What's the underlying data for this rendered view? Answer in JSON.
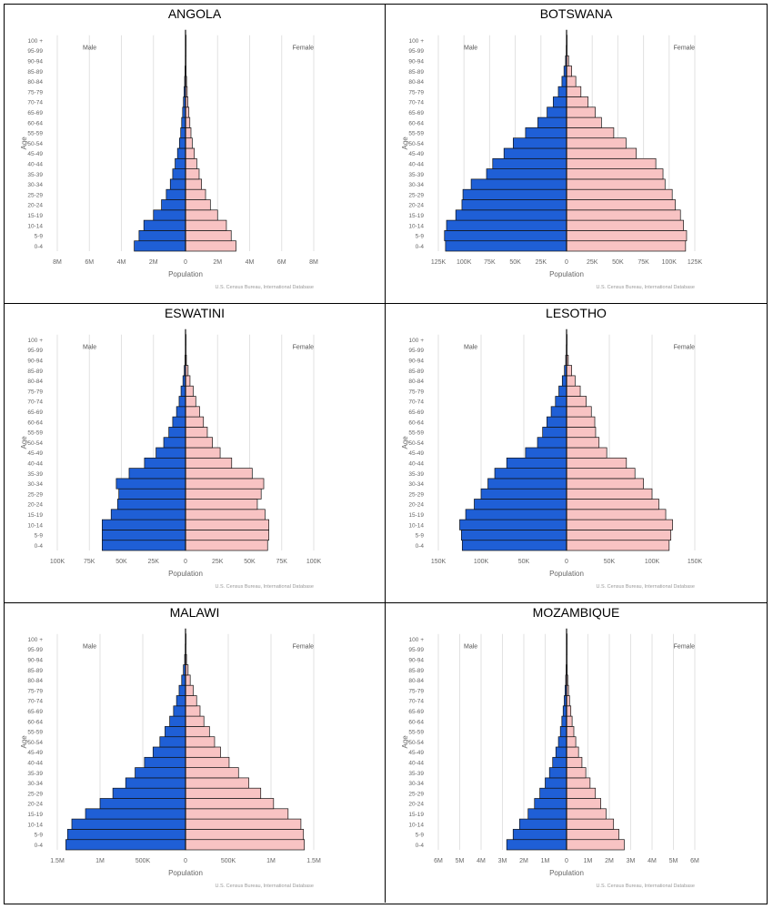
{
  "chart_data": [
    {
      "title": "ANGOLA",
      "type": "bar",
      "age_groups": [
        "0-4",
        "5-9",
        "10-14",
        "15-19",
        "20-24",
        "25-29",
        "30-34",
        "35-39",
        "40-44",
        "45-49",
        "50-54",
        "55-59",
        "60-64",
        "65-69",
        "70-74",
        "75-79",
        "80-84",
        "85-89",
        "90-94",
        "95-99",
        "100 +"
      ],
      "male_label": "Male",
      "female_label": "Female",
      "xlabel": "Population",
      "ylabel": "Age",
      "source": "U.S. Census Bureau, International Database",
      "xmax": 8000000,
      "ticks": [
        {
          "v": -8000000,
          "t": "8M"
        },
        {
          "v": -6000000,
          "t": "6M"
        },
        {
          "v": -4000000,
          "t": "4M"
        },
        {
          "v": -2000000,
          "t": "2M"
        },
        {
          "v": 0,
          "t": "0"
        },
        {
          "v": 2000000,
          "t": "2M"
        },
        {
          "v": 4000000,
          "t": "4M"
        },
        {
          "v": 6000000,
          "t": "6M"
        },
        {
          "v": 8000000,
          "t": "8M"
        }
      ],
      "series": [
        {
          "name": "Male",
          "values": [
            3200000,
            2900000,
            2600000,
            2000000,
            1500000,
            1200000,
            950000,
            800000,
            650000,
            500000,
            380000,
            300000,
            240000,
            180000,
            130000,
            90000,
            55000,
            30000,
            10000,
            3000,
            1000
          ]
        },
        {
          "name": "Female",
          "values": [
            3150000,
            2850000,
            2550000,
            2000000,
            1550000,
            1250000,
            1000000,
            850000,
            700000,
            550000,
            420000,
            340000,
            270000,
            210000,
            150000,
            105000,
            65000,
            35000,
            12000,
            4000,
            1000
          ]
        }
      ]
    },
    {
      "title": "BOTSWANA",
      "type": "bar",
      "age_groups": [
        "0-4",
        "5-9",
        "10-14",
        "15-19",
        "20-24",
        "25-29",
        "30-34",
        "35-39",
        "40-44",
        "45-49",
        "50-54",
        "55-59",
        "60-64",
        "65-69",
        "70-74",
        "75-79",
        "80-84",
        "85-89",
        "90-94",
        "95-99",
        "100 +"
      ],
      "male_label": "Male",
      "female_label": "Female",
      "xlabel": "Population",
      "ylabel": "Age",
      "source": "U.S. Census Bureau, International Database",
      "xmax": 125000,
      "ticks": [
        {
          "v": -125000,
          "t": "125K"
        },
        {
          "v": -100000,
          "t": "100K"
        },
        {
          "v": -75000,
          "t": "75K"
        },
        {
          "v": -50000,
          "t": "50K"
        },
        {
          "v": -25000,
          "t": "25K"
        },
        {
          "v": 0,
          "t": "0"
        },
        {
          "v": 25000,
          "t": "25K"
        },
        {
          "v": 50000,
          "t": "50K"
        },
        {
          "v": 75000,
          "t": "75K"
        },
        {
          "v": 100000,
          "t": "100K"
        },
        {
          "v": 125000,
          "t": "125K"
        }
      ],
      "series": [
        {
          "name": "Male",
          "values": [
            118000,
            119000,
            117000,
            108000,
            102000,
            101000,
            93000,
            78000,
            72000,
            61000,
            52000,
            40000,
            28000,
            19000,
            13000,
            8000,
            4500,
            2500,
            1000,
            300,
            100
          ]
        },
        {
          "name": "Female",
          "values": [
            116000,
            117000,
            114000,
            111000,
            106000,
            103000,
            96000,
            94000,
            87000,
            68000,
            58000,
            46000,
            34000,
            28000,
            21000,
            14000,
            9000,
            5000,
            2000,
            500,
            100
          ]
        }
      ]
    },
    {
      "title": "ESWATINI",
      "type": "bar",
      "age_groups": [
        "0-4",
        "5-9",
        "10-14",
        "15-19",
        "20-24",
        "25-29",
        "30-34",
        "35-39",
        "40-44",
        "45-49",
        "50-54",
        "55-59",
        "60-64",
        "65-69",
        "70-74",
        "75-79",
        "80-84",
        "85-89",
        "90-94",
        "95-99",
        "100 +"
      ],
      "male_label": "Male",
      "female_label": "Female",
      "xlabel": "Population",
      "ylabel": "Age",
      "source": "U.S. Census Bureau, International Database",
      "xmax": 100000,
      "ticks": [
        {
          "v": -100000,
          "t": "100K"
        },
        {
          "v": -75000,
          "t": "75K"
        },
        {
          "v": -50000,
          "t": "50K"
        },
        {
          "v": -25000,
          "t": "25K"
        },
        {
          "v": 0,
          "t": "0"
        },
        {
          "v": 25000,
          "t": "25K"
        },
        {
          "v": 50000,
          "t": "50K"
        },
        {
          "v": 75000,
          "t": "75K"
        },
        {
          "v": 100000,
          "t": "100K"
        }
      ],
      "series": [
        {
          "name": "Male",
          "values": [
            65000,
            65000,
            65000,
            58000,
            53000,
            52000,
            54000,
            44000,
            32000,
            23000,
            17000,
            13000,
            10000,
            7000,
            5000,
            3500,
            2000,
            1000,
            400,
            100,
            50
          ]
        },
        {
          "name": "Female",
          "values": [
            64000,
            65000,
            65000,
            62000,
            56000,
            59000,
            61000,
            52000,
            36000,
            27000,
            21000,
            17000,
            14000,
            11000,
            8000,
            6000,
            3500,
            2000,
            700,
            200,
            50
          ]
        }
      ]
    },
    {
      "title": "LESOTHO",
      "type": "bar",
      "age_groups": [
        "0-4",
        "5-9",
        "10-14",
        "15-19",
        "20-24",
        "25-29",
        "30-34",
        "35-39",
        "40-44",
        "45-49",
        "50-54",
        "55-59",
        "60-64",
        "65-69",
        "70-74",
        "75-79",
        "80-84",
        "85-89",
        "90-94",
        "95-99",
        "100 +"
      ],
      "male_label": "Male",
      "female_label": "Female",
      "xlabel": "Population",
      "ylabel": "Age",
      "source": "U.S. Census Bureau, International Database",
      "xmax": 150000,
      "ticks": [
        {
          "v": -150000,
          "t": "150K"
        },
        {
          "v": -100000,
          "t": "100K"
        },
        {
          "v": -50000,
          "t": "50K"
        },
        {
          "v": 0,
          "t": "0"
        },
        {
          "v": 50000,
          "t": "50K"
        },
        {
          "v": 100000,
          "t": "100K"
        },
        {
          "v": 150000,
          "t": "150K"
        }
      ],
      "series": [
        {
          "name": "Male",
          "values": [
            122000,
            123000,
            125000,
            118000,
            108000,
            100000,
            92000,
            84000,
            70000,
            48000,
            34000,
            28000,
            23000,
            18000,
            13000,
            9000,
            5000,
            2500,
            1000,
            300,
            100
          ]
        },
        {
          "name": "Female",
          "values": [
            120000,
            122000,
            124000,
            116000,
            108000,
            100000,
            90000,
            80000,
            70000,
            47000,
            38000,
            34000,
            33000,
            29000,
            23000,
            16000,
            10000,
            6000,
            2000,
            500,
            100
          ]
        }
      ]
    },
    {
      "title": "MALAWI",
      "type": "bar",
      "age_groups": [
        "0-4",
        "5-9",
        "10-14",
        "15-19",
        "20-24",
        "25-29",
        "30-34",
        "35-39",
        "40-44",
        "45-49",
        "50-54",
        "55-59",
        "60-64",
        "65-69",
        "70-74",
        "75-79",
        "80-84",
        "85-89",
        "90-94",
        "95-99",
        "100 +"
      ],
      "male_label": "Male",
      "female_label": "Female",
      "xlabel": "Population",
      "ylabel": "Age",
      "source": "U.S. Census Bureau, International Database",
      "xmax": 1500000,
      "ticks": [
        {
          "v": -1500000,
          "t": "1.5M"
        },
        {
          "v": -1000000,
          "t": "1M"
        },
        {
          "v": -500000,
          "t": "500K"
        },
        {
          "v": 0,
          "t": "0"
        },
        {
          "v": 500000,
          "t": "500K"
        },
        {
          "v": 1000000,
          "t": "1M"
        },
        {
          "v": 1500000,
          "t": "1.5M"
        }
      ],
      "series": [
        {
          "name": "Male",
          "values": [
            1400000,
            1380000,
            1330000,
            1170000,
            1000000,
            850000,
            700000,
            590000,
            480000,
            380000,
            300000,
            240000,
            185000,
            140000,
            105000,
            75000,
            45000,
            25000,
            10000,
            3000,
            1000
          ]
        },
        {
          "name": "Female",
          "values": [
            1390000,
            1380000,
            1350000,
            1200000,
            1030000,
            880000,
            740000,
            620000,
            510000,
            410000,
            340000,
            280000,
            215000,
            170000,
            130000,
            90000,
            55000,
            30000,
            12000,
            4000,
            1000
          ]
        }
      ]
    },
    {
      "title": "MOZAMBIQUE",
      "type": "bar",
      "age_groups": [
        "0-4",
        "5-9",
        "10-14",
        "15-19",
        "20-24",
        "25-29",
        "30-34",
        "35-39",
        "40-44",
        "45-49",
        "50-54",
        "55-59",
        "60-64",
        "65-69",
        "70-74",
        "75-79",
        "80-84",
        "85-89",
        "90-94",
        "95-99",
        "100 +"
      ],
      "male_label": "Male",
      "female_label": "Female",
      "xlabel": "Population",
      "ylabel": "Age",
      "source": "U.S. Census Bureau, International Database",
      "xmax": 6000000,
      "ticks": [
        {
          "v": -6000000,
          "t": "6M"
        },
        {
          "v": -5000000,
          "t": "5M"
        },
        {
          "v": -4000000,
          "t": "4M"
        },
        {
          "v": -3000000,
          "t": "3M"
        },
        {
          "v": -2000000,
          "t": "2M"
        },
        {
          "v": -1000000,
          "t": "1M"
        },
        {
          "v": 0,
          "t": "0"
        },
        {
          "v": 1000000,
          "t": "1M"
        },
        {
          "v": 2000000,
          "t": "2M"
        },
        {
          "v": 3000000,
          "t": "3M"
        },
        {
          "v": 4000000,
          "t": "4M"
        },
        {
          "v": 5000000,
          "t": "5M"
        },
        {
          "v": 6000000,
          "t": "6M"
        }
      ],
      "series": [
        {
          "name": "Male",
          "values": [
            2800000,
            2500000,
            2200000,
            1800000,
            1500000,
            1250000,
            1000000,
            800000,
            650000,
            500000,
            380000,
            290000,
            220000,
            160000,
            110000,
            70000,
            40000,
            20000,
            7000,
            2000,
            500
          ]
        },
        {
          "name": "Female",
          "values": [
            2700000,
            2450000,
            2200000,
            1850000,
            1600000,
            1350000,
            1100000,
            900000,
            720000,
            560000,
            430000,
            340000,
            260000,
            200000,
            140000,
            90000,
            55000,
            30000,
            10000,
            3000,
            500
          ]
        }
      ]
    }
  ]
}
